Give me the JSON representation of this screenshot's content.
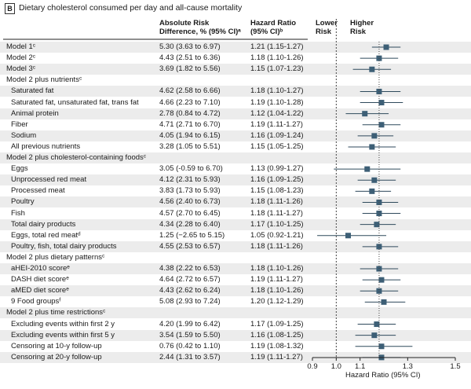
{
  "panel": {
    "label": "B",
    "title": "Dietary cholesterol consumed per day and all-cause mortality"
  },
  "headers": {
    "abs_risk_1": "Absolute Risk",
    "abs_risk_2": "Difference, % (95% CI)ᵃ",
    "hr_1": "Hazard Ratio",
    "hr_2": "(95% CI)ᵇ",
    "lower_1": "Lower",
    "lower_2": "Risk",
    "higher_1": "Higher",
    "higher_2": "Risk"
  },
  "rows": [
    {
      "kind": "model",
      "label": "Model 1ᶜ",
      "ard": "5.30 (3.63 to 6.97)",
      "hr_text": "1.21 (1.15-1.27)",
      "hr": 1.21,
      "lo": 1.15,
      "hi": 1.27
    },
    {
      "kind": "model",
      "label": "Model 2ᶜ",
      "ard": "4.43 (2.51 to 6.36)",
      "hr_text": "1.18 (1.10-1.26)",
      "hr": 1.18,
      "lo": 1.1,
      "hi": 1.26
    },
    {
      "kind": "model",
      "label": "Model 3ᶜ",
      "ard": "3.69 (1.82 to 5.56)",
      "hr_text": "1.15 (1.07-1.23)",
      "hr": 1.15,
      "lo": 1.07,
      "hi": 1.23
    },
    {
      "kind": "section",
      "label": "Model 2 plus nutrientsᶜ"
    },
    {
      "kind": "item",
      "label": "Saturated fat",
      "ard": "4.62 (2.58 to 6.66)",
      "hr_text": "1.18 (1.10-1.27)",
      "hr": 1.18,
      "lo": 1.1,
      "hi": 1.27
    },
    {
      "kind": "item",
      "label": "Saturated fat, unsaturated fat, trans fat",
      "ard": "4.66 (2.23 to 7.10)",
      "hr_text": "1.19 (1.10-1.28)",
      "hr": 1.19,
      "lo": 1.1,
      "hi": 1.28
    },
    {
      "kind": "item",
      "label": "Animal protein",
      "ard": "2.78 (0.84 to 4.72)",
      "hr_text": "1.12 (1.04-1.22)",
      "hr": 1.12,
      "lo": 1.04,
      "hi": 1.22
    },
    {
      "kind": "item",
      "label": "Fiber",
      "ard": "4.71 (2.71 to 6.70)",
      "hr_text": "1.19 (1.11-1.27)",
      "hr": 1.19,
      "lo": 1.11,
      "hi": 1.27
    },
    {
      "kind": "item",
      "label": "Sodium",
      "ard": "4.05 (1.94 to 6.15)",
      "hr_text": "1.16 (1.09-1.24)",
      "hr": 1.16,
      "lo": 1.09,
      "hi": 1.24
    },
    {
      "kind": "item",
      "label": "All previous nutrients",
      "ard": "3.28 (1.05 to 5.51)",
      "hr_text": "1.15 (1.05-1.25)",
      "hr": 1.15,
      "lo": 1.05,
      "hi": 1.25
    },
    {
      "kind": "section",
      "label": "Model 2 plus cholesterol-containing foodsᶜ"
    },
    {
      "kind": "item",
      "label": "Eggs",
      "ard": "3.05 (-0.59 to 6.70)",
      "hr_text": "1.13 (0.99-1.27)",
      "hr": 1.13,
      "lo": 0.99,
      "hi": 1.27
    },
    {
      "kind": "item",
      "label": "Unprocessed red meat",
      "ard": "4.12 (2.31 to 5.93)",
      "hr_text": "1.16 (1.09-1.25)",
      "hr": 1.16,
      "lo": 1.09,
      "hi": 1.25
    },
    {
      "kind": "item",
      "label": "Processed meat",
      "ard": "3.83 (1.73 to 5.93)",
      "hr_text": "1.15 (1.08-1.23)",
      "hr": 1.15,
      "lo": 1.08,
      "hi": 1.23
    },
    {
      "kind": "item",
      "label": "Poultry",
      "ard": "4.56 (2.40 to 6.73)",
      "hr_text": "1.18 (1.11-1.26)",
      "hr": 1.18,
      "lo": 1.11,
      "hi": 1.26
    },
    {
      "kind": "item",
      "label": "Fish",
      "ard": "4.57 (2.70 to 6.45)",
      "hr_text": "1.18 (1.11-1.27)",
      "hr": 1.18,
      "lo": 1.11,
      "hi": 1.27
    },
    {
      "kind": "item",
      "label": "Total dairy products",
      "ard": "4.34 (2.28 to 6.40)",
      "hr_text": "1.17 (1.10-1.25)",
      "hr": 1.17,
      "lo": 1.1,
      "hi": 1.25
    },
    {
      "kind": "item",
      "label": "Eggs, total red meatᵈ",
      "ard": "1.25 (−2.65 to 5.15)",
      "hr_text": "1.05 (0.92-1.21)",
      "hr": 1.05,
      "lo": 0.92,
      "hi": 1.21
    },
    {
      "kind": "item",
      "label": "Poultry, fish, total dairy products",
      "ard": "4.55 (2.53 to 6.57)",
      "hr_text": "1.18 (1.11-1.26)",
      "hr": 1.18,
      "lo": 1.11,
      "hi": 1.26
    },
    {
      "kind": "section",
      "label": "Model 2 plus dietary patternsᶜ"
    },
    {
      "kind": "item",
      "label": "aHEI-2010 scoreᵉ",
      "ard": "4.38 (2.22 to 6.53)",
      "hr_text": "1.18 (1.10-1.26)",
      "hr": 1.18,
      "lo": 1.1,
      "hi": 1.26
    },
    {
      "kind": "item",
      "label": "DASH diet scoreᵉ",
      "ard": "4.64 (2.72 to 6.57)",
      "hr_text": "1.19 (1.11-1.27)",
      "hr": 1.19,
      "lo": 1.11,
      "hi": 1.27
    },
    {
      "kind": "item",
      "label": "aMED diet scoreᵉ",
      "ard": "4.43 (2.62 to 6.24)",
      "hr_text": "1.18 (1.10-1.26)",
      "hr": 1.18,
      "lo": 1.1,
      "hi": 1.26
    },
    {
      "kind": "item",
      "label": "9 Food groupsᶠ",
      "ard": "5.08 (2.93 to 7.24)",
      "hr_text": "1.20 (1.12-1.29)",
      "hr": 1.2,
      "lo": 1.12,
      "hi": 1.29
    },
    {
      "kind": "section",
      "label": "Model 2 plus time restrictionsᶜ"
    },
    {
      "kind": "item",
      "label": "Excluding events within first 2 y",
      "ard": "4.20 (1.99 to 6.42)",
      "hr_text": "1.17 (1.09-1.25)",
      "hr": 1.17,
      "lo": 1.09,
      "hi": 1.25
    },
    {
      "kind": "item",
      "label": "Excluding events within first 5 y",
      "ard": "3.54 (1.59 to 5.50)",
      "hr_text": "1.16 (1.08-1.25)",
      "hr": 1.16,
      "lo": 1.08,
      "hi": 1.25
    },
    {
      "kind": "item",
      "label": "Censoring at 10-y follow-up",
      "ard": "0.76 (0.42 to 1.10)",
      "hr_text": "1.19 (1.08-1.32)",
      "hr": 1.19,
      "lo": 1.08,
      "hi": 1.32
    },
    {
      "kind": "item",
      "label": "Censoring at 20-y follow-up",
      "ard": "2.44 (1.31 to 3.57)",
      "hr_text": "1.19 (1.11-1.27)",
      "hr": 1.19,
      "lo": 1.11,
      "hi": 1.27
    }
  ],
  "chart_data": {
    "type": "forest",
    "xlabel": "Hazard Ratio (95% CI)",
    "xlim": [
      0.9,
      1.5
    ],
    "xticks": [
      0.9,
      1.0,
      1.1,
      1.3,
      1.5
    ],
    "xtick_labels": [
      "0.9",
      "1.0",
      "1.1",
      "1.3",
      "1.5"
    ],
    "reference_line": 1.0,
    "pooled_line": 1.18
  }
}
